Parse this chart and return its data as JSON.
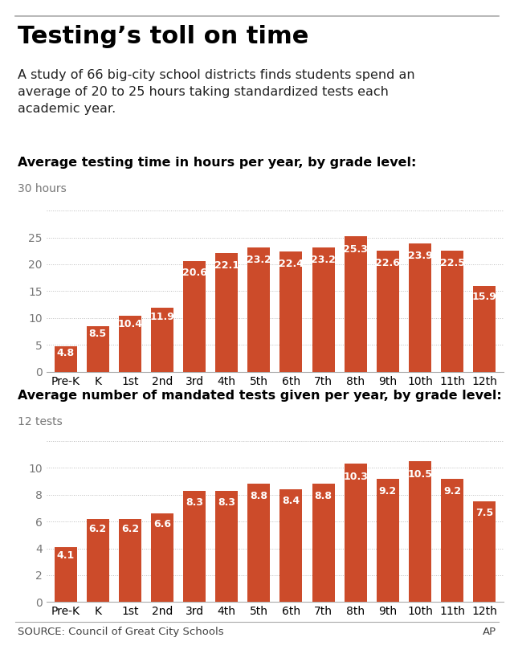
{
  "title": "Testing’s toll on time",
  "subtitle": "A study of 66 big-city school districts finds students spend an\naverage of 20 to 25 hours taking standardized tests each\nacademic year.",
  "chart1_label": "Average testing time in hours per year, by grade level:",
  "chart2_label": "Average number of mandated tests given per year, by grade level:",
  "grades": [
    "Pre-K",
    "K",
    "1st",
    "2nd",
    "3rd",
    "4th",
    "5th",
    "6th",
    "7th",
    "8th",
    "9th",
    "10th",
    "11th",
    "12th"
  ],
  "hours_values": [
    4.8,
    8.5,
    10.4,
    11.9,
    20.6,
    22.1,
    23.2,
    22.4,
    23.2,
    25.3,
    22.6,
    23.9,
    22.5,
    15.9
  ],
  "tests_values": [
    4.1,
    6.2,
    6.2,
    6.6,
    8.3,
    8.3,
    8.8,
    8.4,
    8.8,
    10.3,
    9.2,
    10.5,
    9.2,
    7.5
  ],
  "bar_color": "#cc4b2a",
  "hours_ylim": [
    0,
    30
  ],
  "hours_yticks": [
    0,
    5,
    10,
    15,
    20,
    25
  ],
  "hours_top_label": "30 hours",
  "tests_ylim": [
    0,
    12
  ],
  "tests_yticks": [
    0,
    2,
    4,
    6,
    8,
    10
  ],
  "tests_top_label": "12 tests",
  "source_text": "SOURCE: Council of Great City Schools",
  "source_right": "AP",
  "bg_color": "#ffffff",
  "grid_color": "#bbbbbb",
  "title_fontsize": 22,
  "subtitle_fontsize": 11.5,
  "chart_label_fontsize": 11.5,
  "bar_label_fontsize": 9,
  "tick_fontsize": 10,
  "axis_label_fontsize": 10,
  "source_fontsize": 9.5
}
